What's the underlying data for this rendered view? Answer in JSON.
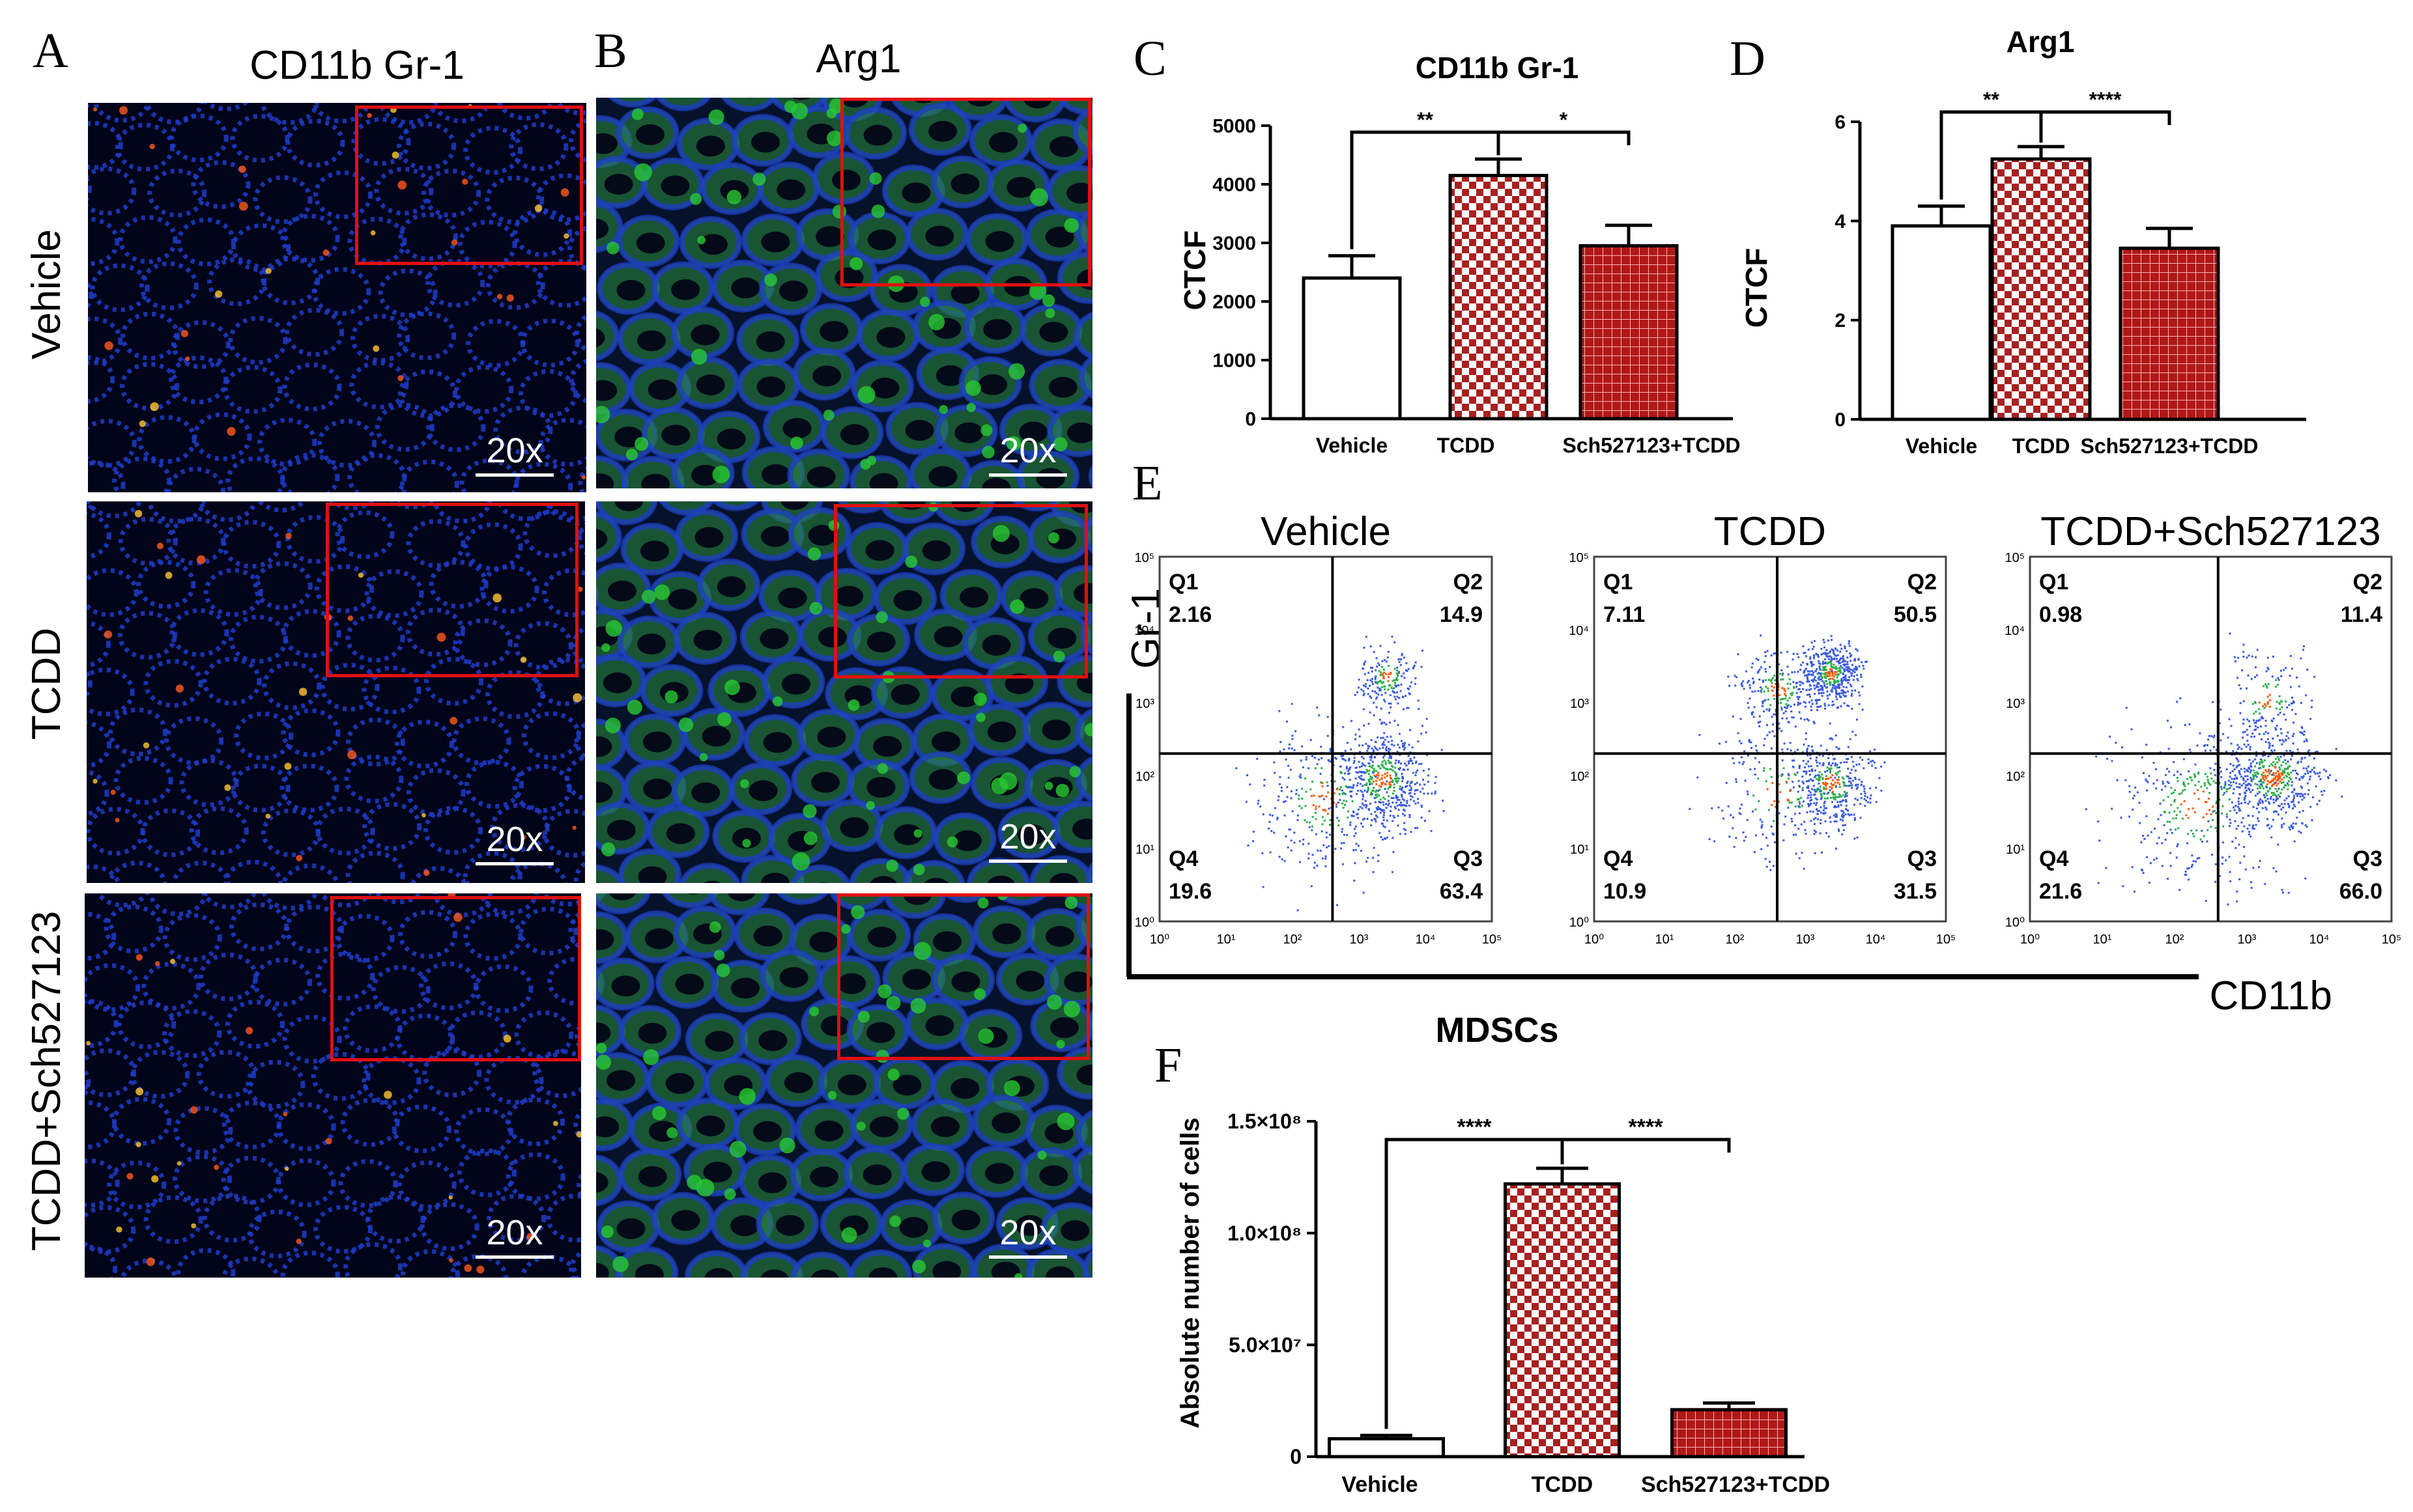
{
  "panels": {
    "A": "A",
    "B": "B",
    "C": "C",
    "D": "D",
    "E": "E",
    "F": "F"
  },
  "microscopy": {
    "col_A_title": "CD11b Gr-1",
    "col_B_title": "Arg1",
    "rows": [
      "Vehicle",
      "TCDD",
      "TCDD+Sch527123"
    ],
    "scale_label": "20x",
    "colors": {
      "nuclei": "#1e3cc8",
      "stain_green": "#28c832",
      "stain_red": "#ff5a1e",
      "inset_border": "#e01010"
    }
  },
  "chart_data": [
    {
      "id": "C",
      "type": "bar",
      "title": "CD11b Gr-1",
      "ylabel": "CTCF",
      "xlabel": "",
      "categories": [
        "Vehicle",
        "TCDD",
        "Sch527123+TCDD"
      ],
      "values": [
        2400,
        4150,
        2950
      ],
      "errors": [
        380,
        280,
        350
      ],
      "ylim": [
        0,
        5000
      ],
      "yticks": [
        0,
        1000,
        2000,
        3000,
        4000,
        5000
      ],
      "ytick_labels": [
        "0",
        "1000",
        "2000",
        "3000",
        "4000",
        "5000"
      ],
      "significance": [
        "**",
        "*"
      ],
      "fills": [
        "white",
        "checker",
        "grid"
      ]
    },
    {
      "id": "D",
      "type": "bar",
      "title": "Arg1",
      "ylabel": "CTCF",
      "xlabel": "",
      "categories": [
        "Vehicle",
        "TCDD",
        "Sch527123+TCDD"
      ],
      "values": [
        3.9,
        5.25,
        3.45
      ],
      "errors": [
        0.4,
        0.25,
        0.4
      ],
      "ylim": [
        0,
        6
      ],
      "yticks": [
        0,
        2,
        4,
        6
      ],
      "ytick_labels": [
        "0",
        "2",
        "4",
        "6"
      ],
      "significance": [
        "**",
        "****"
      ],
      "fills": [
        "white",
        "checker",
        "grid"
      ]
    },
    {
      "id": "F",
      "type": "bar",
      "title": "MDSCs",
      "ylabel": "Absolute number of cells",
      "xlabel": "",
      "categories": [
        "Vehicle",
        "TCDD",
        "Sch527123+TCDD"
      ],
      "values": [
        8000000,
        122000000,
        21000000
      ],
      "errors": [
        1500000,
        7000000,
        3000000
      ],
      "ylim": [
        0,
        150000000
      ],
      "yticks": [
        0,
        50000000,
        100000000,
        150000000
      ],
      "ytick_labels": [
        "0",
        "5.0×10⁷",
        "1.0×10⁸",
        "1.5×10⁸"
      ],
      "significance": [
        "****",
        "****"
      ],
      "fills": [
        "white",
        "checker",
        "grid"
      ]
    },
    {
      "id": "E",
      "type": "scatter",
      "title": "",
      "xlabel": "CD11b",
      "ylabel": "Gr-1",
      "axis_scale": "log",
      "xlim": [
        1,
        100000
      ],
      "ylim": [
        1,
        100000
      ],
      "tick_labels": [
        "10⁰",
        "10¹",
        "10²",
        "10³",
        "10⁴",
        "10⁵"
      ],
      "plots": [
        {
          "title": "Vehicle",
          "gate": [
            400,
            200
          ],
          "quadrants": {
            "Q1": "2.16",
            "Q2": "14.9",
            "Q3": "63.4",
            "Q4": "19.6"
          }
        },
        {
          "title": "TCDD",
          "gate": [
            400,
            200
          ],
          "quadrants": {
            "Q1": "7.11",
            "Q2": "50.5",
            "Q3": "31.5",
            "Q4": "10.9"
          }
        },
        {
          "title": "TCDD+Sch527123",
          "gate": [
            400,
            200
          ],
          "quadrants": {
            "Q1": "0.98",
            "Q2": "11.4",
            "Q3": "66.0",
            "Q4": "21.6"
          }
        }
      ]
    }
  ]
}
